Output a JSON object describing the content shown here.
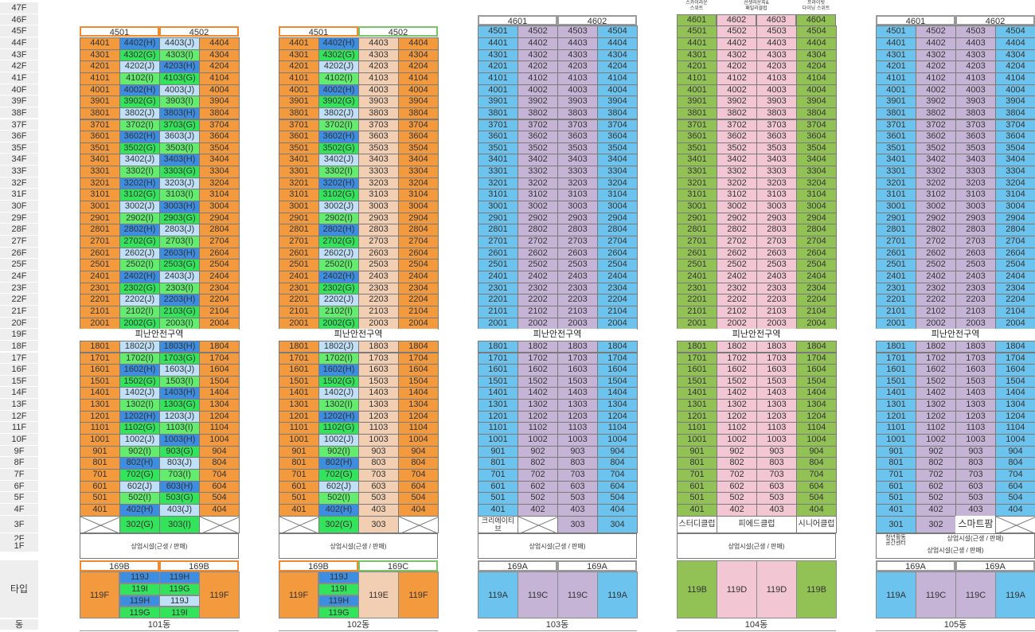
{
  "floor_labels": [
    "47F",
    "46F",
    "45F",
    "44F",
    "43F",
    "42F",
    "41F",
    "40F",
    "39F",
    "38F",
    "37F",
    "36F",
    "35F",
    "34F",
    "33F",
    "32F",
    "31F",
    "30F",
    "29F",
    "28F",
    "27F",
    "26F",
    "25F",
    "24F",
    "23F",
    "22F",
    "21F",
    "20F",
    "19F",
    "18F",
    "17F",
    "16F",
    "15F",
    "14F",
    "13F",
    "12F",
    "11F",
    "10F",
    "9F",
    "8F",
    "7F",
    "6F",
    "5F",
    "4F",
    "3F",
    "2F",
    "1F"
  ],
  "type_label": "타입",
  "dong_label": "동",
  "refuge_label": "피난안전구역",
  "commercial_label": "상업시설(근생 / 판매)",
  "colors": {
    "orange": "#f39a3f",
    "blue": "#3d8de0",
    "green": "#33e35b",
    "lightblue": "#bfe0f7",
    "peach": "#f2cfb2",
    "sky": "#6cc3ee",
    "lavender": "#c6b4d6",
    "olive": "#92c256",
    "pink": "#f2c7d3",
    "grayborder": "#9a9a9a",
    "orangeborder": "#ef8a30",
    "greenborder": "#79c466"
  },
  "buildings": [
    {
      "name": "101동",
      "header": [
        "4501",
        "4502"
      ],
      "types_row": [
        "169B",
        "169B"
      ],
      "high": {
        "c2": [
          "4402(H)",
          "4302(G)",
          "4202(J)",
          "4102(I)",
          "4002(H)",
          "3902(G)",
          "3802(J)",
          "3702(I)",
          "3602(H)",
          "3502(G)",
          "3402(J)",
          "3302(I)",
          "3202(H)",
          "3102(G)",
          "3002(J)",
          "2902(I)",
          "2802(H)",
          "2702(G)",
          "2602(J)",
          "2502(I)",
          "2402(H)",
          "2302(G)",
          "2202(J)",
          "2102(I)",
          "2002(G)"
        ],
        "c3": [
          "4403(J)",
          "4303(I)",
          "4203(H)",
          "4103(G)",
          "4003(J)",
          "3903(I)",
          "3803(H)",
          "3703(G)",
          "3603(J)",
          "3503(I)",
          "3403(H)",
          "3303(G)",
          "3203(J)",
          "3103(I)",
          "3003(H)",
          "2903(G)",
          "2803(J)",
          "2703(I)",
          "2603(H)",
          "2503(G)",
          "2403(J)",
          "2303(I)",
          "2203(H)",
          "2103(G)",
          "2003(I)"
        ]
      },
      "low": {
        "c2": [
          "1802(J)",
          "1702(I)",
          "1602(H)",
          "1502(G)",
          "1402(J)",
          "1302(I)",
          "1202(H)",
          "1102(G)",
          "1002(J)",
          "902(I)",
          "802(H)",
          "702(G)",
          "602(J)",
          "502(I)",
          "402(H)"
        ],
        "c3": [
          "1803(H)",
          "1703(G)",
          "1603(J)",
          "1503(I)",
          "1403(H)",
          "1303(G)",
          "1203(J)",
          "1103(I)",
          "1003(H)",
          "903(G)",
          "803(J)",
          "703(I)",
          "603(H)",
          "503(G)",
          "403(J)"
        ]
      },
      "f3": [
        "302(G)",
        "303(I)"
      ],
      "type_cells": [
        "119F",
        "119J",
        "119I",
        "119H",
        "119G",
        "119H",
        "119G",
        "119J",
        "119I",
        "119F"
      ]
    },
    {
      "name": "102동",
      "header": [
        "4501",
        "4502"
      ],
      "types_row": [
        "169B",
        "169C"
      ],
      "high": {
        "c2": [
          "4402(H)",
          "4302(G)",
          "4202(J)",
          "4102(I)",
          "4002(H)",
          "3902(G)",
          "3802(J)",
          "3702(I)",
          "3602(H)",
          "3502(G)",
          "3402(J)",
          "3302(I)",
          "3202(H)",
          "3102(G)",
          "3002(J)",
          "2902(I)",
          "2802(H)",
          "2702(G)",
          "2602(J)",
          "2502(I)",
          "2402(H)",
          "2302(G)",
          "2202(J)",
          "2102(I)",
          "2002(G)"
        ],
        "c3": [
          "4403",
          "4303",
          "4203",
          "4103",
          "4003",
          "3903",
          "3803",
          "3703",
          "3603",
          "3503",
          "3403",
          "3303",
          "3203",
          "3103",
          "3003",
          "2903",
          "2803",
          "2703",
          "2603",
          "2503",
          "2403",
          "2303",
          "2203",
          "2103",
          "2003"
        ]
      },
      "low": {
        "c2": [
          "1802(J)",
          "1702(I)",
          "1602(H)",
          "1502(G)",
          "1402(J)",
          "1302(I)",
          "1202(H)",
          "1102(G)",
          "1002(J)",
          "902(I)",
          "802(H)",
          "702(G)",
          "602(J)",
          "502(I)",
          "402(H)"
        ],
        "c3": [
          "1803",
          "1703",
          "1603",
          "1503",
          "1403",
          "1303",
          "1203",
          "1103",
          "1003",
          "903",
          "803",
          "703",
          "603",
          "503",
          "403"
        ]
      },
      "f3": [
        "302(G)",
        "303"
      ],
      "type_cells": [
        "119F",
        "119J",
        "119I",
        "119H",
        "119G",
        "119E",
        "119F"
      ]
    },
    {
      "name": "103동",
      "header": [
        "4601",
        "4602"
      ],
      "types_row": [
        "169A",
        "169A"
      ],
      "f3": [
        "크리에이티브\n클럽",
        "303",
        "304"
      ],
      "type_cells": [
        "119A",
        "119C",
        "119C",
        "119A"
      ]
    },
    {
      "name": "104동",
      "header": [
        "4601",
        "4602",
        "4603",
        "4604"
      ],
      "notes": [
        "스카이라운\n스위트",
        "선셋라운지&\n패밀리클럽",
        "프라이빗\n다이닝 스위트"
      ],
      "f3": [
        "스터디클럽",
        "피에드클럽",
        "시니어클럽"
      ],
      "type_cells": [
        "119B",
        "119D",
        "119D",
        "119B"
      ]
    },
    {
      "name": "105동",
      "header": [
        "4601",
        "4602"
      ],
      "types_row": [
        "169A",
        "169A"
      ],
      "f3": [
        "301",
        "302",
        "스마트팜"
      ],
      "f2_note": "청년활동\n공간센터",
      "type_cells": [
        "119A",
        "119C",
        "119C",
        "119A"
      ]
    }
  ]
}
